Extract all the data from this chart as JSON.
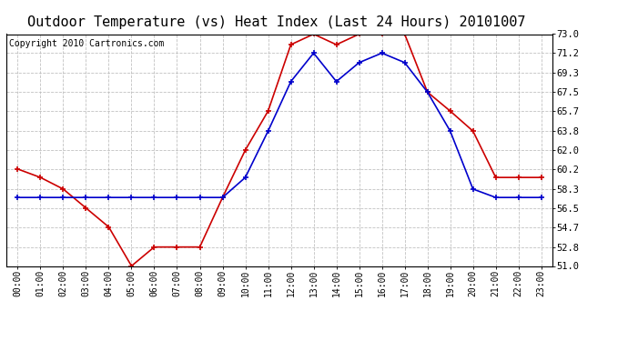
{
  "title": "Outdoor Temperature (vs) Heat Index (Last 24 Hours) 20101007",
  "copyright": "Copyright 2010 Cartronics.com",
  "hours": [
    "00:00",
    "01:00",
    "02:00",
    "03:00",
    "04:00",
    "05:00",
    "06:00",
    "07:00",
    "08:00",
    "09:00",
    "10:00",
    "11:00",
    "12:00",
    "13:00",
    "14:00",
    "15:00",
    "16:00",
    "17:00",
    "18:00",
    "19:00",
    "20:00",
    "21:00",
    "22:00",
    "23:00"
  ],
  "red_temp": [
    60.2,
    59.4,
    58.3,
    56.5,
    54.7,
    51.0,
    52.8,
    52.8,
    52.8,
    57.5,
    62.0,
    65.7,
    72.0,
    73.0,
    72.0,
    73.0,
    73.0,
    73.0,
    67.5,
    65.7,
    63.8,
    59.4,
    59.4,
    59.4
  ],
  "blue_heat": [
    57.5,
    57.5,
    57.5,
    57.5,
    57.5,
    57.5,
    57.5,
    57.5,
    57.5,
    57.5,
    59.4,
    63.8,
    68.5,
    71.2,
    68.5,
    70.3,
    71.2,
    70.3,
    67.5,
    63.8,
    58.3,
    57.5,
    57.5,
    57.5
  ],
  "red_color": "#cc0000",
  "blue_color": "#0000cc",
  "ylim_min": 51.0,
  "ylim_max": 73.0,
  "yticks": [
    51.0,
    52.8,
    54.7,
    56.5,
    58.3,
    60.2,
    62.0,
    63.8,
    65.7,
    67.5,
    69.3,
    71.2,
    73.0
  ],
  "bg_color": "#ffffff",
  "plot_bg": "#ffffff",
  "grid_color": "#bbbbbb",
  "title_fontsize": 11,
  "copyright_fontsize": 7,
  "tick_fontsize": 7,
  "ytick_fontsize": 7.5
}
